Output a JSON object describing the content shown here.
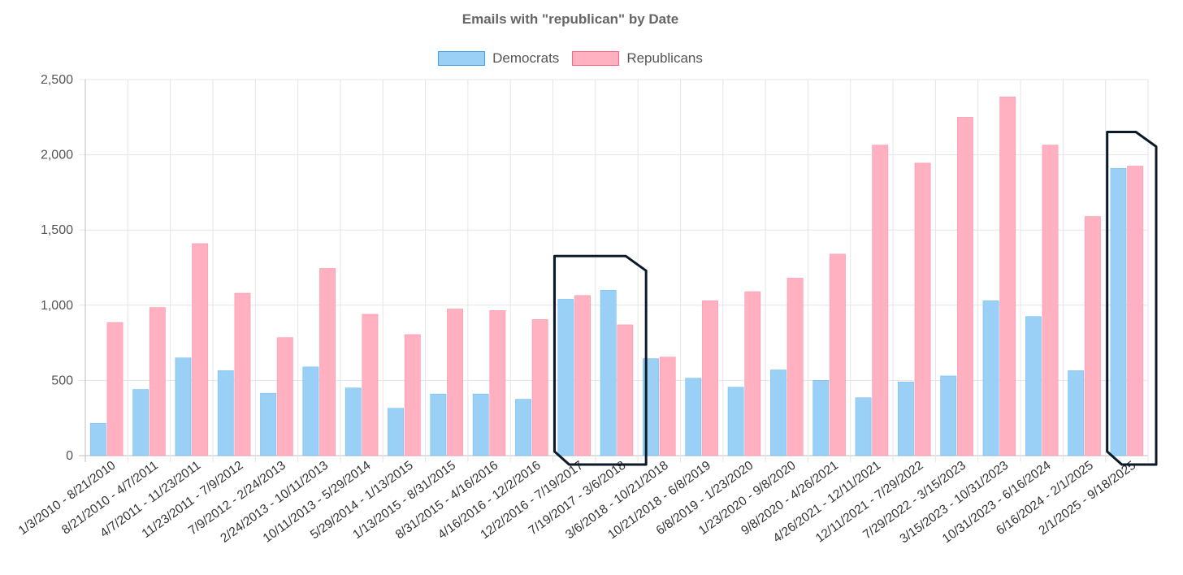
{
  "chart_data": {
    "type": "bar",
    "title": "Emails with \"republican\" by Date",
    "xlabel": "",
    "ylabel": "",
    "ylim": [
      0,
      2500
    ],
    "yticks": [
      0,
      500,
      1000,
      1500,
      2000,
      2500
    ],
    "ytick_labels": [
      "0",
      "500",
      "1,000",
      "1,500",
      "2,000",
      "2,500"
    ],
    "grid": true,
    "legend_position": "top-center",
    "categories": [
      "1/3/2010 - 8/21/2010",
      "8/21/2010 - 4/7/2011",
      "4/7/2011 - 11/23/2011",
      "11/23/2011 - 7/9/2012",
      "7/9/2012 - 2/24/2013",
      "2/24/2013 - 10/11/2013",
      "10/11/2013 - 5/29/2014",
      "5/29/2014 - 1/13/2015",
      "1/13/2015 - 8/31/2015",
      "8/31/2015 - 4/16/2016",
      "4/16/2016 - 12/2/2016",
      "12/2/2016 - 7/19/2017",
      "7/19/2017 - 3/6/2018",
      "3/6/2018 - 10/21/2018",
      "10/21/2018 - 6/8/2019",
      "6/8/2019 - 1/23/2020",
      "1/23/2020 - 9/8/2020",
      "9/8/2020 - 4/26/2021",
      "4/26/2021 - 12/11/2021",
      "12/11/2021 - 7/29/2022",
      "7/29/2022 - 3/15/2023",
      "3/15/2023 - 10/31/2023",
      "10/31/2023 - 6/16/2024",
      "6/16/2024 - 2/1/2025",
      "2/1/2025 - 9/18/2025"
    ],
    "series": [
      {
        "name": "Democrats",
        "color": "#9AD0F5",
        "border": "#36A2EB",
        "values": [
          215,
          440,
          650,
          565,
          415,
          590,
          450,
          315,
          410,
          410,
          375,
          1040,
          1100,
          645,
          515,
          455,
          570,
          500,
          385,
          490,
          530,
          1030,
          925,
          565,
          1910
        ]
      },
      {
        "name": "Republicans",
        "color": "#FFB1C1",
        "border": "#FF6384",
        "values": [
          885,
          985,
          1410,
          1080,
          785,
          1245,
          940,
          805,
          975,
          965,
          905,
          1065,
          870,
          655,
          1030,
          1090,
          1180,
          1340,
          2065,
          1945,
          2250,
          2385,
          2065,
          1590,
          1925
        ]
      }
    ],
    "highlighted_categories": [
      "12/2/2016 - 7/19/2017",
      "7/19/2017 - 3/6/2018",
      "2/1/2025 - 9/18/2025"
    ],
    "highlight_color": "#0B1929"
  }
}
